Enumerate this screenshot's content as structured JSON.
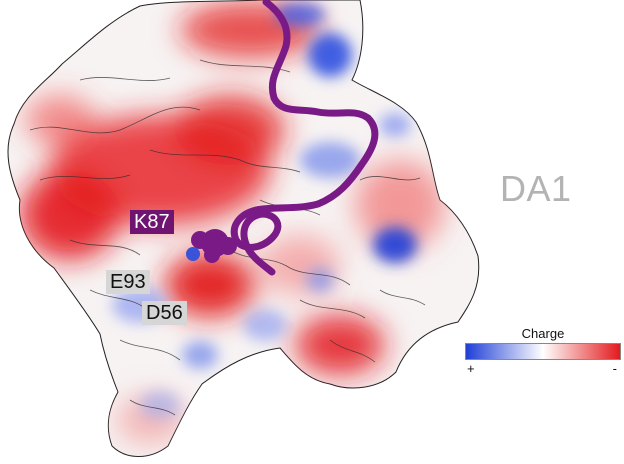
{
  "region_label": "DA1",
  "residues": {
    "k87": "K87",
    "e93": "E93",
    "d56": "D56"
  },
  "legend": {
    "title": "Charge",
    "positive_label": "+",
    "negative_label": "-"
  },
  "colors": {
    "positive": "#1f3fd6",
    "neutral": "#ffffff",
    "negative": "#e31a1c",
    "peptide": "#7a1a86",
    "region_label": "#b3b3b3"
  }
}
